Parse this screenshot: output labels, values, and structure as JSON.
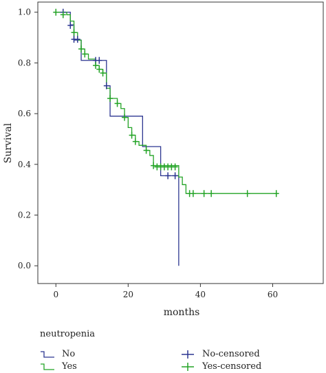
{
  "chart_data": {
    "type": "line",
    "xlabel": "months",
    "ylabel": "Survival",
    "xlim": [
      -5,
      74
    ],
    "ylim": [
      -0.07,
      1.04
    ],
    "xticks": [
      0,
      20,
      40,
      60
    ],
    "yticks": [
      0.0,
      0.2,
      0.4,
      0.6,
      0.8,
      1.0
    ],
    "xtick_labels": [
      "0",
      "20",
      "40",
      "60"
    ],
    "ytick_labels": [
      "0.0",
      "0.2",
      "0.4",
      "0.6",
      "0.8",
      "1.0"
    ],
    "legend_title": "neutropenia",
    "legend_position": "bottom",
    "series": [
      {
        "name": "No",
        "color": "#2b3590",
        "steps": [
          [
            0,
            1.0
          ],
          [
            4,
            0.95
          ],
          [
            5,
            0.89
          ],
          [
            7,
            0.81
          ],
          [
            14,
            0.71
          ],
          [
            15,
            0.59
          ],
          [
            24,
            0.47
          ],
          [
            29,
            0.355
          ],
          [
            34,
            0.0
          ]
        ],
        "end_x": 34
      },
      {
        "name": "Yes",
        "color": "#22a325",
        "steps": [
          [
            0,
            1.0
          ],
          [
            3,
            0.99
          ],
          [
            4,
            0.965
          ],
          [
            5,
            0.92
          ],
          [
            6,
            0.89
          ],
          [
            7,
            0.855
          ],
          [
            8,
            0.835
          ],
          [
            9,
            0.815
          ],
          [
            11,
            0.79
          ],
          [
            12,
            0.775
          ],
          [
            13,
            0.76
          ],
          [
            14,
            0.7
          ],
          [
            15,
            0.66
          ],
          [
            17,
            0.64
          ],
          [
            18,
            0.62
          ],
          [
            19,
            0.585
          ],
          [
            20,
            0.545
          ],
          [
            21,
            0.515
          ],
          [
            22,
            0.49
          ],
          [
            23,
            0.475
          ],
          [
            25,
            0.455
          ],
          [
            26,
            0.435
          ],
          [
            27,
            0.395
          ],
          [
            34,
            0.35
          ],
          [
            35,
            0.32
          ],
          [
            36,
            0.285
          ]
        ],
        "end_x": 61
      },
      {
        "name": "No-censored",
        "color": "#2b3590",
        "marker": "+",
        "points": [
          [
            2,
            1.0
          ],
          [
            4,
            0.948
          ],
          [
            5,
            0.893
          ],
          [
            6,
            0.893
          ],
          [
            11,
            0.81
          ],
          [
            12,
            0.81
          ],
          [
            14,
            0.71
          ],
          [
            31,
            0.355
          ],
          [
            33,
            0.355
          ]
        ]
      },
      {
        "name": "Yes-censored",
        "color": "#22a325",
        "marker": "+",
        "points": [
          [
            0,
            1.0
          ],
          [
            2,
            0.99
          ],
          [
            5,
            0.92
          ],
          [
            7,
            0.855
          ],
          [
            8,
            0.835
          ],
          [
            11,
            0.79
          ],
          [
            12,
            0.775
          ],
          [
            13,
            0.76
          ],
          [
            15,
            0.66
          ],
          [
            17,
            0.64
          ],
          [
            19,
            0.585
          ],
          [
            21,
            0.515
          ],
          [
            22,
            0.49
          ],
          [
            25,
            0.455
          ],
          [
            27,
            0.395
          ],
          [
            28,
            0.39
          ],
          [
            29,
            0.39
          ],
          [
            30,
            0.39
          ],
          [
            31,
            0.39
          ],
          [
            32,
            0.39
          ],
          [
            33,
            0.39
          ],
          [
            37,
            0.285
          ],
          [
            38,
            0.285
          ],
          [
            41,
            0.285
          ],
          [
            43,
            0.285
          ],
          [
            53,
            0.285
          ],
          [
            61,
            0.285
          ]
        ]
      }
    ]
  }
}
